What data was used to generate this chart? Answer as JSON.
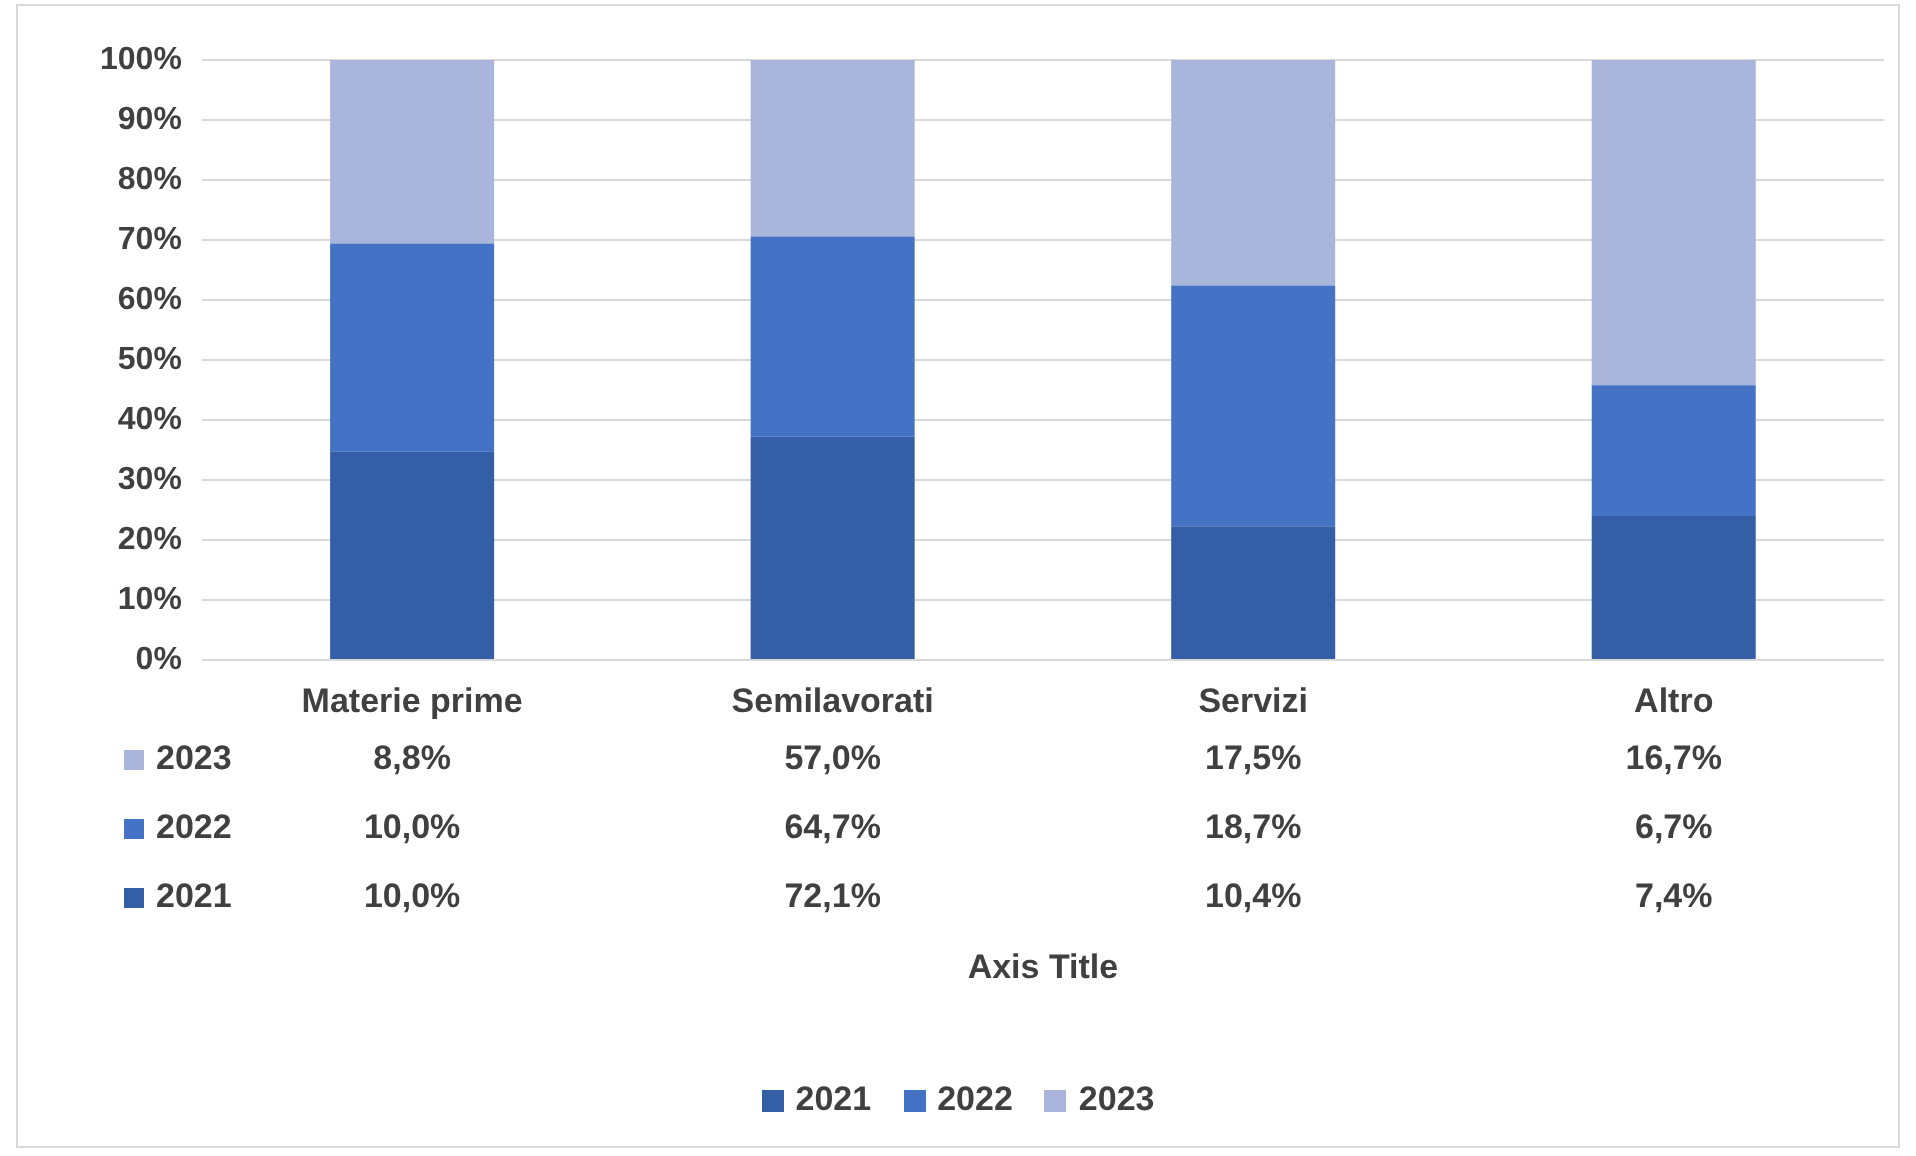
{
  "chart_data": {
    "type": "bar",
    "stacked": true,
    "categories": [
      "Materie prime",
      "Semilavorati",
      "Servizi",
      "Altro"
    ],
    "series": [
      {
        "name": "2021",
        "color": "#345ea6",
        "values": [
          34.7,
          37.2,
          22.3,
          24.0
        ]
      },
      {
        "name": "2022",
        "color": "#4472c4",
        "values": [
          34.7,
          33.4,
          40.1,
          21.8
        ]
      },
      {
        "name": "2023",
        "color": "#a9b5db",
        "values": [
          30.6,
          29.4,
          37.6,
          54.2
        ]
      }
    ],
    "annotations": [
      "8,8%",
      "57,0%",
      "17,5%",
      "16,7%",
      "10,0%",
      "64,7%",
      "18,7%",
      "6,7%",
      "10,0%",
      "72,1%",
      "10,4%",
      "7,4%",
      "Axis Title"
    ],
    "ylim": [
      0,
      100
    ],
    "yticks": [
      {
        "value": 0,
        "label": "0%"
      },
      {
        "value": 10,
        "label": "10%"
      },
      {
        "value": 20,
        "label": "20%"
      },
      {
        "value": 30,
        "label": "30%"
      },
      {
        "value": 40,
        "label": "40%"
      },
      {
        "value": 50,
        "label": "50%"
      },
      {
        "value": 60,
        "label": "60%"
      },
      {
        "value": 70,
        "label": "70%"
      },
      {
        "value": 80,
        "label": "80%"
      },
      {
        "value": 90,
        "label": "90%"
      },
      {
        "value": 100,
        "label": "100%"
      }
    ],
    "grid": "y",
    "legend": "bottom"
  }
}
